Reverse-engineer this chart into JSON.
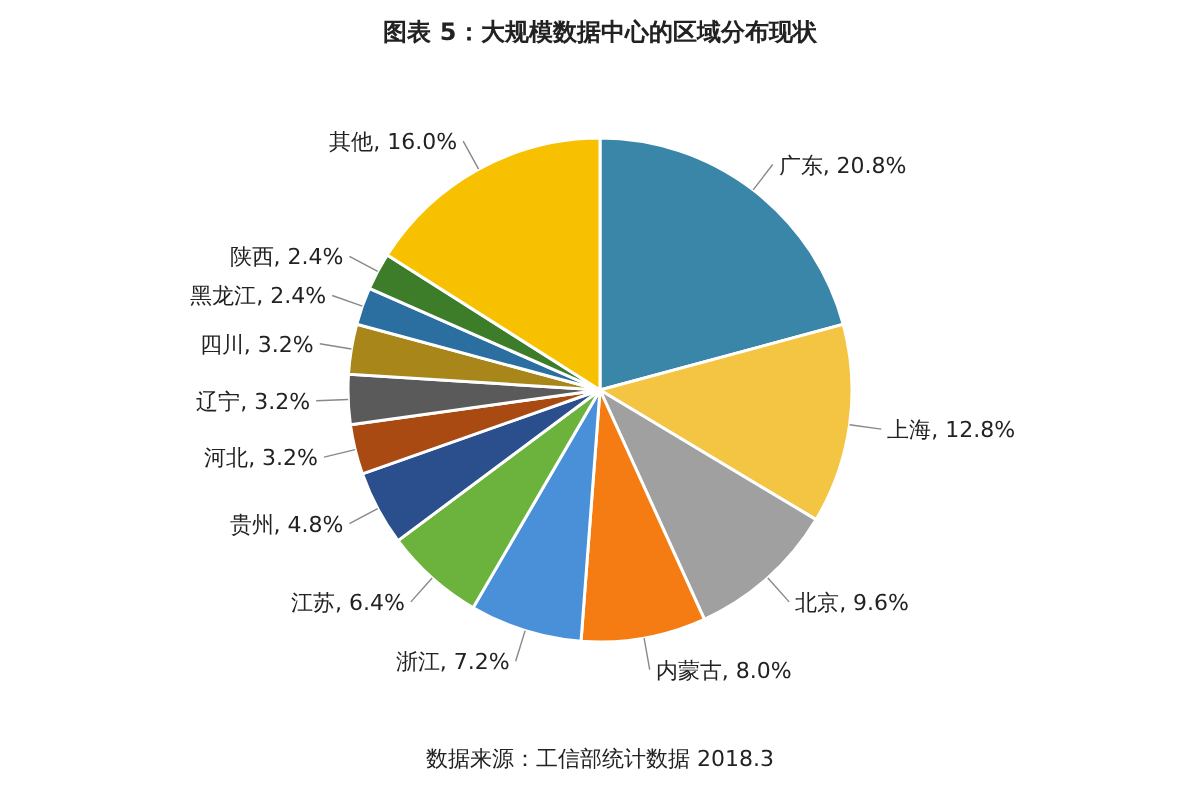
{
  "chart_data": {
    "type": "pie",
    "title": "图表 5：大规模数据中心的区域分布现状",
    "categories": [
      "广东",
      "上海",
      "北京",
      "内蒙古",
      "浙江",
      "江苏",
      "贵州",
      "河北",
      "辽宁",
      "四川",
      "黑龙江",
      "陕西",
      "其他"
    ],
    "values": [
      20.8,
      12.8,
      9.6,
      8.0,
      7.2,
      6.4,
      4.8,
      3.2,
      3.2,
      3.2,
      2.4,
      2.4,
      16.0
    ],
    "value_labels": [
      ", 20.8%",
      ", 12.8%",
      ", 9.6%",
      ", 8.0%",
      ", 7.2%",
      ", 6.4%",
      ", 4.8%",
      ", 3.2%",
      ", 3.2%",
      ", 3.2%",
      ", 2.4%",
      ", 2.4%",
      ", 16.0%"
    ],
    "colors": [
      "#3a86a8",
      "#f4c542",
      "#a0a0a0",
      "#f47c12",
      "#4a90d9",
      "#6bb33c",
      "#2b4f8c",
      "#a84a12",
      "#5a5a5a",
      "#a8861a",
      "#2a6fa0",
      "#3d7d2a",
      "#f7c000"
    ],
    "annotations": [
      "数据来源：工信部统计数据 2018.3"
    ]
  }
}
